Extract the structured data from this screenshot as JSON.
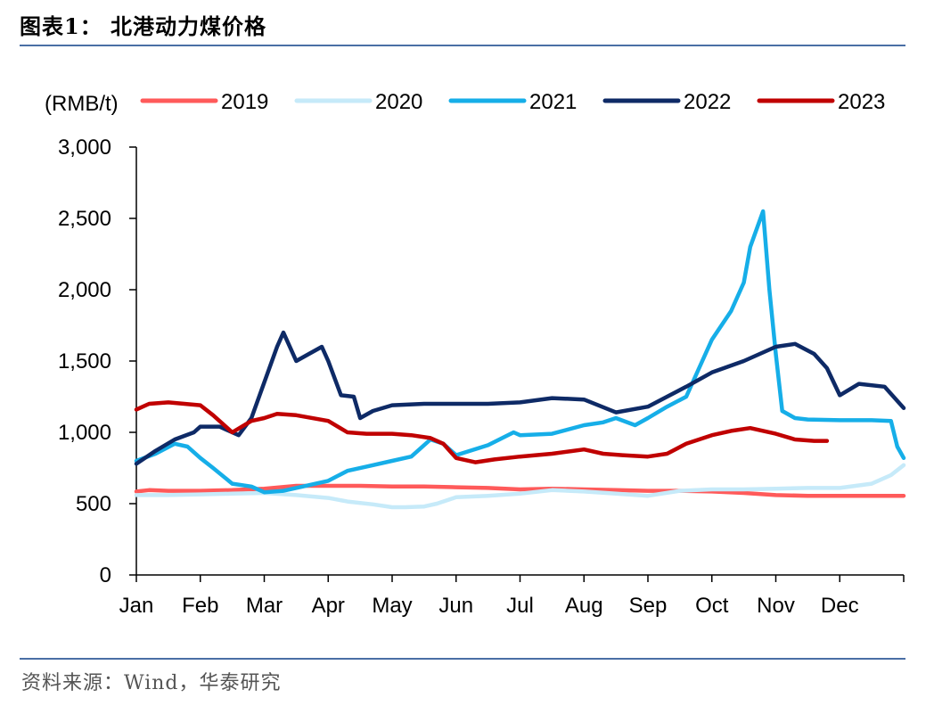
{
  "figure_title": "图表1：  北港动力煤价格",
  "source": "资料来源：Wind，华泰研究",
  "rule_color": "#4a6fa5",
  "chart_data": {
    "type": "line",
    "title": "",
    "xlabel": "",
    "ylabel": "(RMB/t)",
    "ylim": [
      0,
      3000
    ],
    "yticks": [
      0,
      500,
      1000,
      1500,
      2000,
      2500,
      3000
    ],
    "ytick_labels": [
      "0",
      "500",
      "1,000",
      "1,500",
      "2,000",
      "2,500",
      "3,000"
    ],
    "xlim": [
      1,
      13
    ],
    "xtick_labels": [
      "Jan",
      "Feb",
      "Mar",
      "Apr",
      "May",
      "Jun",
      "Jul",
      "Aug",
      "Sep",
      "Oct",
      "Nov",
      "Dec"
    ],
    "grid": false,
    "legend_position": "top",
    "series": [
      {
        "name": "2019",
        "color": "#ff5a5a",
        "x": [
          1,
          1.2,
          1.5,
          2,
          2.5,
          3,
          3.5,
          4,
          4.5,
          5,
          5.5,
          6,
          6.5,
          7,
          7.5,
          8,
          8.5,
          9,
          9.5,
          10,
          10.5,
          11,
          11.5,
          12,
          12.5,
          13
        ],
        "y": [
          585,
          595,
          590,
          590,
          595,
          605,
          625,
          625,
          625,
          620,
          620,
          615,
          610,
          600,
          605,
          600,
          595,
          590,
          590,
          585,
          575,
          560,
          555,
          555,
          555,
          555
        ]
      },
      {
        "name": "2020",
        "color": "#c6eaf9",
        "x": [
          1,
          1.5,
          2,
          2.5,
          3,
          3.5,
          4,
          4.3,
          4.7,
          5,
          5.2,
          5.5,
          5.7,
          6,
          6.5,
          7,
          7.5,
          8,
          8.5,
          9,
          9.5,
          10,
          10.5,
          11,
          11.5,
          12,
          12.5,
          12.8,
          13
        ],
        "y": [
          560,
          560,
          565,
          570,
          575,
          560,
          540,
          515,
          495,
          475,
          475,
          480,
          500,
          545,
          555,
          570,
          595,
          585,
          570,
          555,
          590,
          600,
          600,
          605,
          610,
          610,
          640,
          700,
          770
        ]
      },
      {
        "name": "2021",
        "color": "#16aee8",
        "x": [
          1,
          1.3,
          1.6,
          1.8,
          2,
          2.2,
          2.5,
          2.8,
          3,
          3.3,
          3.6,
          4,
          4.3,
          4.6,
          5,
          5.3,
          5.6,
          5.8,
          6,
          6.5,
          6.9,
          7,
          7.5,
          8,
          8.3,
          8.5,
          8.8,
          9,
          9.3,
          9.6,
          10,
          10.3,
          10.5,
          10.6,
          10.8,
          10.9,
          11,
          11.1,
          11.3,
          11.5,
          12,
          12.5,
          12.8,
          12.9,
          13
        ],
        "y": [
          800,
          850,
          920,
          900,
          820,
          750,
          640,
          620,
          580,
          590,
          620,
          660,
          730,
          760,
          800,
          830,
          950,
          920,
          840,
          910,
          1000,
          980,
          990,
          1050,
          1070,
          1100,
          1050,
          1100,
          1180,
          1250,
          1650,
          1850,
          2050,
          2300,
          2550,
          2000,
          1550,
          1150,
          1100,
          1090,
          1085,
          1085,
          1080,
          900,
          820
        ]
      },
      {
        "name": "2022",
        "color": "#0e2a66",
        "x": [
          1,
          1.3,
          1.6,
          1.9,
          2,
          2.3,
          2.6,
          2.8,
          3,
          3.2,
          3.3,
          3.5,
          3.7,
          3.9,
          4,
          4.2,
          4.4,
          4.5,
          4.7,
          5,
          5.5,
          6,
          6.5,
          7,
          7.5,
          8,
          8.5,
          9,
          9.3,
          9.6,
          10,
          10.5,
          11,
          11.3,
          11.6,
          11.8,
          12,
          12.3,
          12.7,
          13
        ],
        "y": [
          780,
          870,
          950,
          1000,
          1040,
          1040,
          980,
          1100,
          1350,
          1600,
          1700,
          1500,
          1550,
          1600,
          1500,
          1260,
          1250,
          1100,
          1150,
          1190,
          1200,
          1200,
          1200,
          1210,
          1240,
          1230,
          1140,
          1180,
          1250,
          1320,
          1420,
          1500,
          1600,
          1620,
          1550,
          1450,
          1260,
          1340,
          1320,
          1170
        ]
      },
      {
        "name": "2023",
        "color": "#c00000",
        "x": [
          1,
          1.2,
          1.5,
          2,
          2.2,
          2.5,
          2.8,
          3,
          3.2,
          3.5,
          4,
          4.3,
          4.6,
          5,
          5.3,
          5.6,
          5.8,
          6,
          6.3,
          6.6,
          7,
          7.5,
          8,
          8.3,
          8.6,
          9,
          9.3,
          9.6,
          10,
          10.3,
          10.6,
          11,
          11.3,
          11.6,
          11.8
        ],
        "y": [
          1160,
          1200,
          1210,
          1190,
          1120,
          1000,
          1080,
          1100,
          1130,
          1120,
          1080,
          1000,
          990,
          990,
          980,
          960,
          920,
          820,
          790,
          810,
          830,
          850,
          880,
          850,
          840,
          830,
          850,
          920,
          980,
          1010,
          1030,
          990,
          950,
          940,
          940
        ]
      }
    ]
  }
}
